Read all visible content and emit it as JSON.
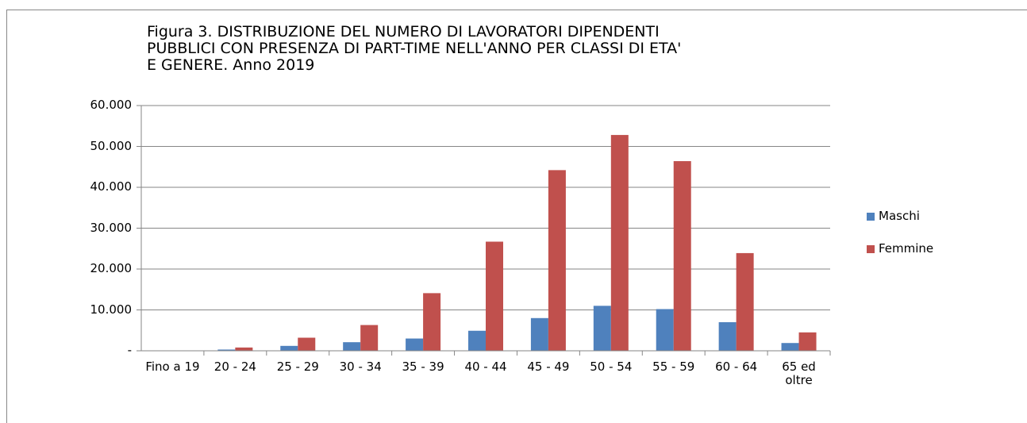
{
  "chart_data": {
    "type": "bar",
    "title": [
      "Figura 3. DISTRIBUZIONE DEL NUMERO DI LAVORATORI DIPENDENTI",
      "PUBBLICI CON PRESENZA DI PART-TIME NELL'ANNO PER CLASSI DI ETA'",
      "E GENERE. Anno 2019"
    ],
    "categories": [
      "Fino a 19",
      "20 - 24",
      "25 - 29",
      "30 - 34",
      "35 - 39",
      "40 - 44",
      "45 - 49",
      "50 - 54",
      "55 - 59",
      "60 - 64",
      "65 ed oltre"
    ],
    "series": [
      {
        "name": "Maschi",
        "color": "#4f81bd",
        "values": [
          50,
          300,
          1200,
          2100,
          3000,
          4900,
          8000,
          11000,
          10200,
          7000,
          1900
        ]
      },
      {
        "name": "Femmine",
        "color": "#c0504d",
        "values": [
          50,
          800,
          3200,
          6300,
          14100,
          26700,
          44200,
          52800,
          46400,
          23900,
          4500
        ]
      }
    ],
    "ylim": [
      0,
      60000
    ],
    "yticks": [
      {
        "value": 0,
        "label": "-"
      },
      {
        "value": 10000,
        "label": "10.000"
      },
      {
        "value": 20000,
        "label": "20.000"
      },
      {
        "value": 30000,
        "label": "30.000"
      },
      {
        "value": 40000,
        "label": "40.000"
      },
      {
        "value": 50000,
        "label": "50.000"
      },
      {
        "value": 60000,
        "label": "60.000"
      }
    ],
    "grid": true,
    "legend": "right"
  }
}
